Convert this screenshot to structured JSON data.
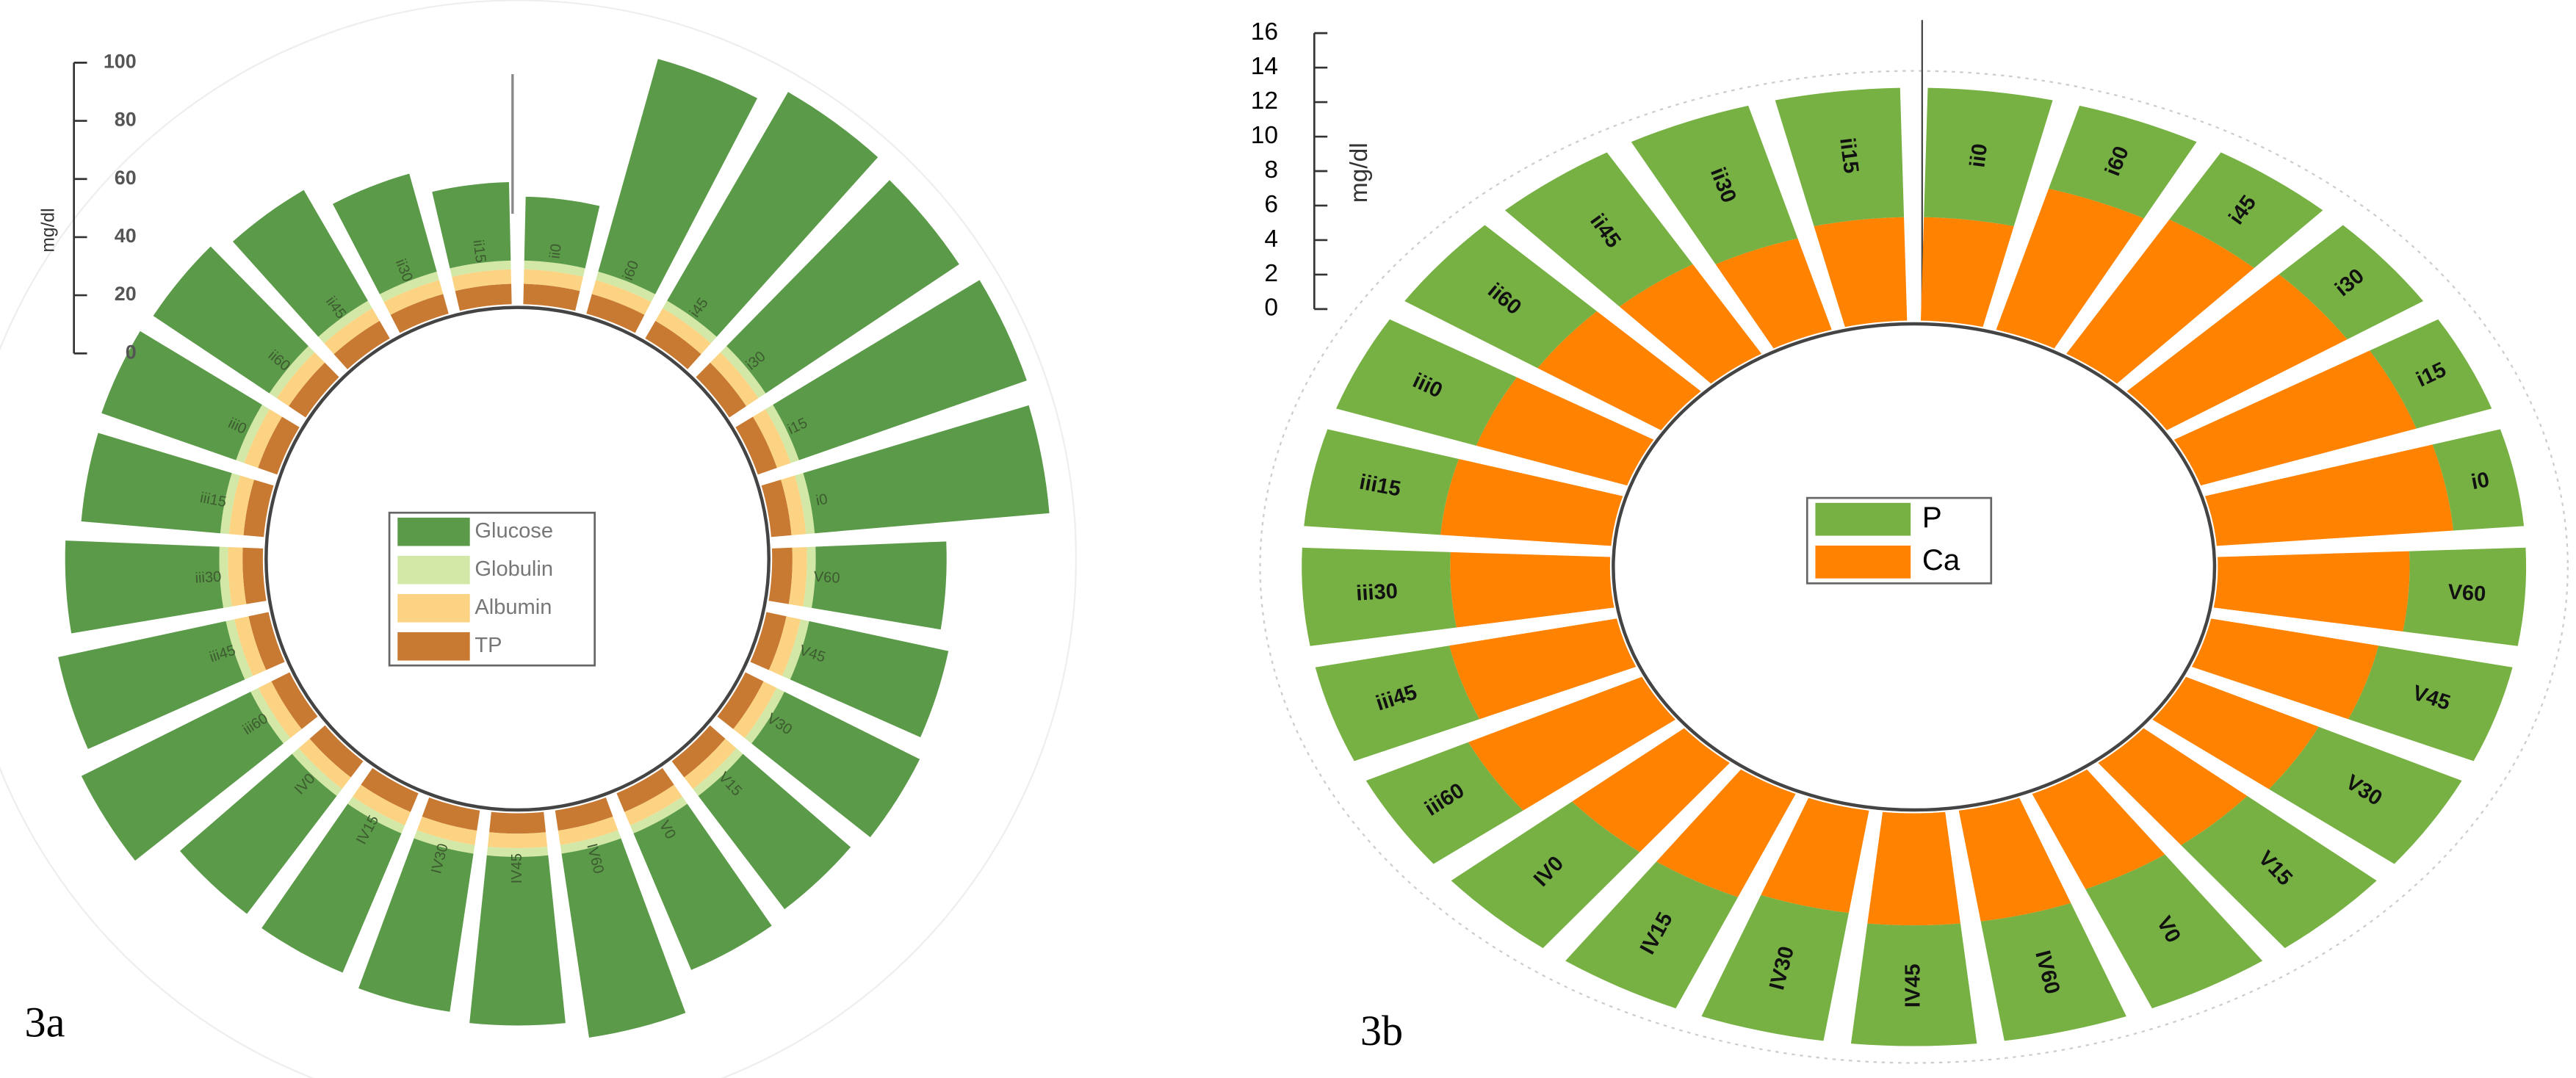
{
  "chart_data": [
    {
      "type": "radial_bar",
      "panel": "3a",
      "y_label": "mg/dl",
      "categories": [
        "ii0",
        "i60",
        "i45",
        "i30",
        "i15",
        "i0",
        "V60",
        "V45",
        "V30",
        "V15",
        "V0",
        "IV60",
        "IV45",
        "IV30",
        "IV15",
        "IV0",
        "iii60",
        "iii45",
        "iii30",
        "iii15",
        "iii0",
        "ii60",
        "ii45",
        "ii30",
        "ii15"
      ],
      "series": [
        {
          "name": "Glucose",
          "color": "#5b9a48",
          "values": [
            22,
            76,
            83,
            80,
            83,
            81,
            45,
            49,
            52,
            49,
            51,
            64,
            58,
            55,
            52,
            51,
            65,
            59,
            53,
            48,
            49,
            48,
            44,
            35,
            27
          ]
        },
        {
          "name": "Globulin",
          "color": "#d3e8a6",
          "values": [
            3,
            3,
            3,
            3,
            3,
            3,
            3,
            3,
            3,
            3,
            3,
            3,
            3,
            3,
            3,
            3,
            3,
            3,
            3,
            3,
            3,
            3,
            3,
            3,
            3
          ]
        },
        {
          "name": "Albumin",
          "color": "#fbd383",
          "values": [
            5,
            5,
            5,
            5,
            5,
            5,
            5,
            5,
            5,
            5,
            5,
            5,
            5,
            5,
            5,
            5,
            5,
            5,
            5,
            5,
            5,
            5,
            5,
            5,
            5
          ]
        },
        {
          "name": "TP",
          "color": "#c97a32",
          "values": [
            7,
            7,
            7,
            7,
            7,
            7,
            7,
            7,
            7,
            7,
            7,
            7,
            7,
            7,
            7,
            7,
            7,
            7,
            7,
            7,
            7,
            7,
            7,
            7,
            7
          ]
        }
      ],
      "ylim": [
        0,
        100
      ],
      "yticks": [
        0,
        20,
        40,
        60,
        80,
        100
      ]
    },
    {
      "type": "radial_bar",
      "panel": "3b",
      "y_label": "mg/dl",
      "categories": [
        "ii0",
        "i60",
        "i45",
        "i30",
        "i15",
        "i0",
        "V60",
        "V45",
        "V30",
        "V15",
        "V0",
        "IV60",
        "IV45",
        "IV30",
        "IV15",
        "IV0",
        "iii60",
        "iii45",
        "iii30",
        "iii15",
        "iii0",
        "ii60",
        "ii45",
        "ii30",
        "ii15"
      ],
      "series": [
        {
          "name": "P",
          "color": "#77b144",
          "values": [
            7.5,
            5,
            4.5,
            4,
            3.5,
            3.1,
            5.1,
            6,
            7,
            7.5,
            7.5,
            7,
            7,
            7.5,
            7,
            7,
            5,
            6,
            6.5,
            6,
            6.5,
            7,
            7.5,
            8,
            7.5
          ]
        },
        {
          "name": "Ca",
          "color": "#ff8200",
          "values": [
            6,
            8.5,
            9,
            9.5,
            10,
            10.4,
            8.4,
            7.5,
            6.5,
            6,
            6,
            6.5,
            6.5,
            6,
            6.5,
            6.5,
            8.5,
            7.5,
            7,
            7.5,
            7,
            6.5,
            6,
            5.5,
            6
          ]
        }
      ],
      "ylim": [
        0,
        16
      ],
      "yticks": [
        0,
        2,
        4,
        6,
        8,
        10,
        12,
        14,
        16
      ]
    }
  ]
}
